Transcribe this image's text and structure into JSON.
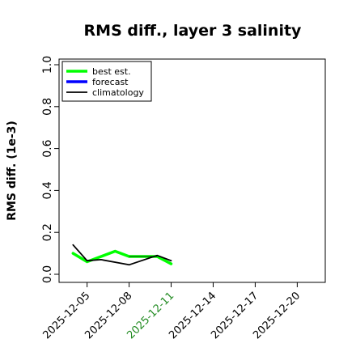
{
  "chart_data": {
    "type": "line",
    "title": "RMS diff., layer 3 salinity",
    "ylabel": "RMS diff. (1e-3)",
    "xlabel": "",
    "ylim": [
      0.0,
      1.0
    ],
    "yticks": [
      "0.0",
      "0.2",
      "0.4",
      "0.6",
      "0.8",
      "1.0"
    ],
    "xlim": [
      "2025-12-03",
      "2025-12-22"
    ],
    "xticks": [
      {
        "label": "2025-12-05",
        "color": "#000000"
      },
      {
        "label": "2025-12-08",
        "color": "#000000"
      },
      {
        "label": "2025-12-11",
        "color": "#228B22"
      },
      {
        "label": "2025-12-14",
        "color": "#000000"
      },
      {
        "label": "2025-12-17",
        "color": "#000000"
      },
      {
        "label": "2025-12-20",
        "color": "#000000"
      }
    ],
    "legend": {
      "placement": "top-left"
    },
    "series": [
      {
        "name": "best est.",
        "color": "#00ff00",
        "x": [
          "2025-12-04",
          "2025-12-05",
          "2025-12-07",
          "2025-12-08",
          "2025-12-10",
          "2025-12-11"
        ],
        "values": [
          0.1,
          0.06,
          0.11,
          0.085,
          0.085,
          0.05
        ]
      },
      {
        "name": "forecast",
        "color": "#0000ff",
        "x": [],
        "values": []
      },
      {
        "name": "climatology",
        "color": "#000000",
        "x": [
          "2025-12-04",
          "2025-12-05",
          "2025-12-06",
          "2025-12-08",
          "2025-12-10",
          "2025-12-11"
        ],
        "values": [
          0.14,
          0.065,
          0.07,
          0.045,
          0.09,
          0.065
        ]
      }
    ],
    "connector": {
      "color": "#000000",
      "x": [
        "2025-12-08",
        "2025-12-10"
      ],
      "values": [
        0.085,
        0.085
      ]
    }
  }
}
